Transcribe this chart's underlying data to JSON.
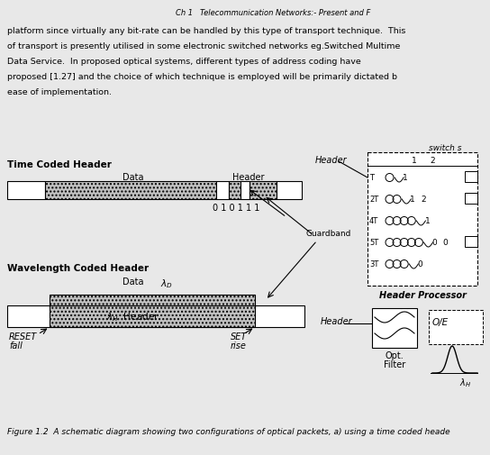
{
  "bg_color": "#e8e8e8",
  "header_text": "Ch 1   Telecommunication Networks:- Present and F",
  "body_lines": [
    "platform since virtually any bit-rate can be handled by this type of transport technique.  This",
    "of transport is presently utilised in some electronic switched networks eg.Switched Multime",
    "Data Service.  In proposed optical systems, different types of address coding have",
    "proposed [1.27] and the choice of which technique is employed will be primarily dictated b",
    "ease of implementation."
  ],
  "caption": "Figure 1.2  A schematic diagram showing two configurations of optical packets, a) using a time coded heade",
  "gray_fill": "#c0c0c0",
  "light_gray": "#d0d0d0",
  "white": "#ffffff",
  "black": "#000000",
  "switch_s": "switch s",
  "time_coded_label": "Time Coded Header",
  "wl_coded_label": "Wavelength Coded Header",
  "data_label": "Data",
  "header_label": "Header",
  "guardband_label": "Guardband",
  "header_proc_label": "Header Processor",
  "reset_fall": [
    "RESET",
    "fall"
  ],
  "set_rise": [
    "SET",
    "rise"
  ],
  "opt_filter": [
    "Opt.",
    "Filter"
  ],
  "bits_label": "0 1 0 1 1 1",
  "delay_rows": [
    {
      "label": "T",
      "ncoils": 1,
      "v1": "1",
      "v2": null
    },
    {
      "label": "2T",
      "ncoils": 2,
      "v1": "1",
      "v2": "2"
    },
    {
      "label": "4T",
      "ncoils": 4,
      "v1": "1",
      "v2": null
    },
    {
      "label": "5T",
      "ncoils": 5,
      "v1": "0",
      "v2": "0"
    },
    {
      "label": "3T",
      "ncoils": 3,
      "v1": "0",
      "v2": null
    }
  ]
}
